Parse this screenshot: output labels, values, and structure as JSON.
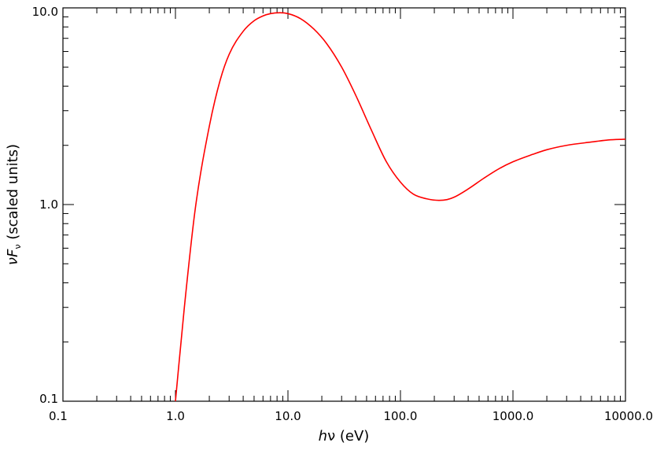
{
  "chart_data": {
    "type": "line",
    "title": "",
    "xlabel_italic": "h",
    "xlabel_rest": "ν (eV)",
    "ylabel_italic": "νF",
    "ylabel_sub": "ν",
    "ylabel_rest": " (scaled units)",
    "xscale": "log",
    "yscale": "log",
    "xlim": [
      0.1,
      10000
    ],
    "ylim": [
      0.1,
      10
    ],
    "grid": false,
    "x_tick_labels": [
      "0.1",
      "1.0",
      "10.0",
      "100.0",
      "1000.0",
      "10000.0"
    ],
    "y_tick_labels": [
      "0.1",
      "1.0",
      "10.0"
    ],
    "series": [
      {
        "color": "#ff0000",
        "x": [
          1.0,
          1.2,
          1.5,
          2.0,
          2.5,
          3.0,
          4.0,
          5.0,
          6.0,
          7.0,
          8.5,
          10,
          13,
          17,
          22,
          30,
          40,
          55,
          75,
          100,
          130,
          170,
          220,
          260,
          300,
          400,
          550,
          750,
          1000,
          1500,
          2000,
          3000,
          5000,
          7000,
          10000
        ],
        "y": [
          0.1,
          0.3,
          0.95,
          2.5,
          4.3,
          5.8,
          7.6,
          8.6,
          9.1,
          9.35,
          9.45,
          9.35,
          8.8,
          7.8,
          6.6,
          5.0,
          3.6,
          2.4,
          1.65,
          1.3,
          1.13,
          1.07,
          1.05,
          1.06,
          1.09,
          1.2,
          1.36,
          1.52,
          1.65,
          1.8,
          1.9,
          2.0,
          2.08,
          2.13,
          2.15
        ]
      }
    ]
  }
}
